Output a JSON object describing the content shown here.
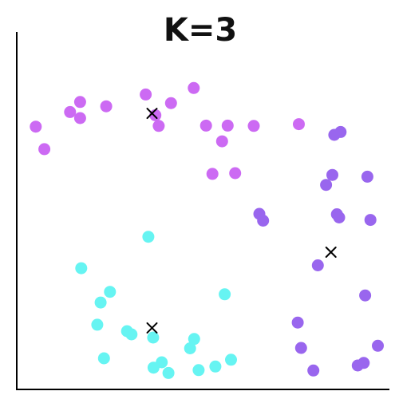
{
  "chart_data": {
    "type": "scatter",
    "title": "K=3",
    "xlabel": "",
    "ylabel": "",
    "xlim": [
      0,
      100
    ],
    "ylim": [
      0,
      100
    ],
    "grid": false,
    "legend": "none",
    "series": [
      {
        "cluster": 1,
        "color": "#cc6af3",
        "points": [
          [
            17,
            80.4
          ],
          [
            24,
            79.2
          ],
          [
            17,
            75.9
          ],
          [
            14.3,
            77.6
          ],
          [
            5.1,
            73.5
          ],
          [
            7.4,
            67.2
          ],
          [
            34.6,
            82.5
          ],
          [
            41.4,
            80.1
          ],
          [
            47.5,
            84.3
          ],
          [
            37.2,
            76.7
          ],
          [
            38.1,
            73.7
          ],
          [
            50.8,
            73.8
          ],
          [
            63.6,
            73.7
          ],
          [
            56.6,
            73.8
          ],
          [
            55.1,
            69.4
          ],
          [
            58.6,
            60.5
          ],
          [
            52.5,
            60.3
          ],
          [
            75.7,
            74.2
          ]
        ]
      },
      {
        "cluster": 2,
        "color": "#9966ee",
        "points": [
          [
            86.9,
            72.0
          ],
          [
            85.2,
            71.2
          ],
          [
            83.0,
            57.2
          ],
          [
            84.7,
            60.0
          ],
          [
            94.1,
            59.5
          ],
          [
            85.9,
            49.0
          ],
          [
            86.5,
            48.1
          ],
          [
            94.9,
            47.4
          ],
          [
            65.1,
            49.1
          ],
          [
            66.1,
            47.2
          ],
          [
            80.8,
            34.7
          ],
          [
            93.5,
            26.3
          ],
          [
            75.4,
            18.7
          ],
          [
            76.3,
            11.6
          ],
          [
            96.9,
            12.2
          ],
          [
            79.6,
            5.3
          ],
          [
            91.5,
            6.7
          ],
          [
            93.1,
            7.4
          ]
        ]
      },
      {
        "cluster": 3,
        "color": "#66f4f2",
        "points": [
          [
            35.3,
            42.7
          ],
          [
            17.3,
            33.9
          ],
          [
            25.0,
            27.3
          ],
          [
            22.5,
            24.3
          ],
          [
            55.8,
            26.6
          ],
          [
            21.6,
            18.1
          ],
          [
            29.6,
            16.3
          ],
          [
            30.8,
            15.4
          ],
          [
            36.6,
            14.5
          ],
          [
            47.6,
            14.1
          ],
          [
            46.5,
            11.5
          ],
          [
            23.4,
            8.7
          ],
          [
            38.9,
            7.6
          ],
          [
            36.7,
            6.1
          ],
          [
            40.7,
            4.6
          ],
          [
            57.5,
            8.3
          ],
          [
            53.3,
            6.4
          ],
          [
            48.8,
            5.4
          ]
        ]
      }
    ],
    "centroids": [
      [
        36.3,
        77.2
      ],
      [
        84.3,
        38.4
      ],
      [
        36.3,
        17.2
      ]
    ]
  }
}
